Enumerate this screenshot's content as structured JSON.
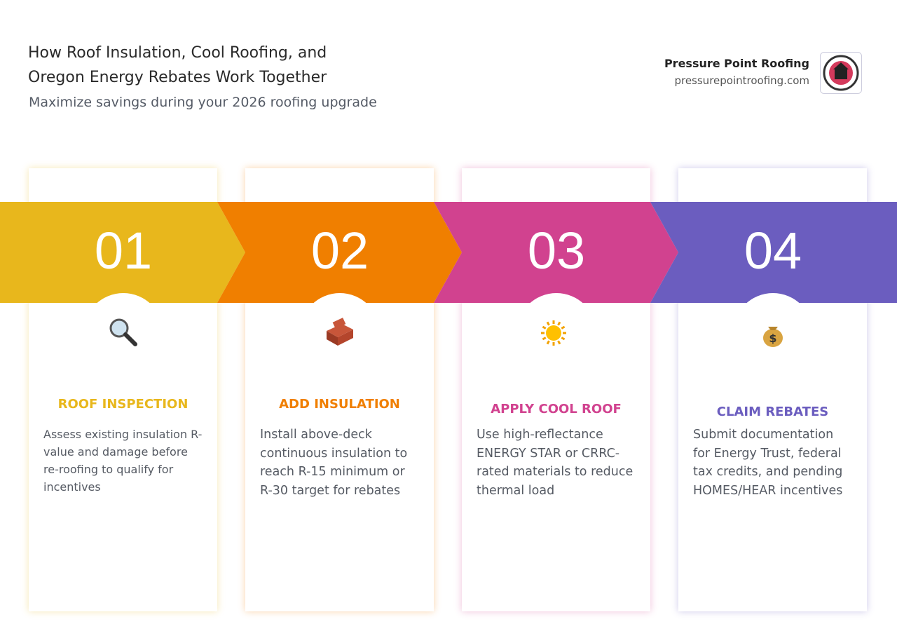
{
  "header": {
    "title": "How Roof Insulation, Cool Roofing, and Oregon Energy Rebates Work Together",
    "subtitle": "Maximize savings during your 2026 roofing upgrade",
    "brand": "Pressure Point Roofing",
    "url": "pressurepointroofing.com"
  },
  "steps": [
    {
      "number": "01",
      "title": "ROOF INSPECTION",
      "text": "Assess existing insulation R-value and damage before re-roofing to qualify for incentives",
      "color": "#e8b71c"
    },
    {
      "number": "02",
      "title": "ADD INSULATION",
      "text": "Install above-deck continuous insulation to reach R-15 minimum or R-30 target for rebates",
      "color": "#f07f00"
    },
    {
      "number": "03",
      "title": "APPLY COOL ROOF",
      "text": "Use high-reflectance ENERGY STAR or CRRC-rated materials to reduce thermal load",
      "color": "#d1428f"
    },
    {
      "number": "04",
      "title": "CLAIM REBATES",
      "text": "Submit documentation for Energy Trust, federal tax credits, and pending HOMES/HEAR incentives",
      "color": "#6b5dbf"
    }
  ]
}
